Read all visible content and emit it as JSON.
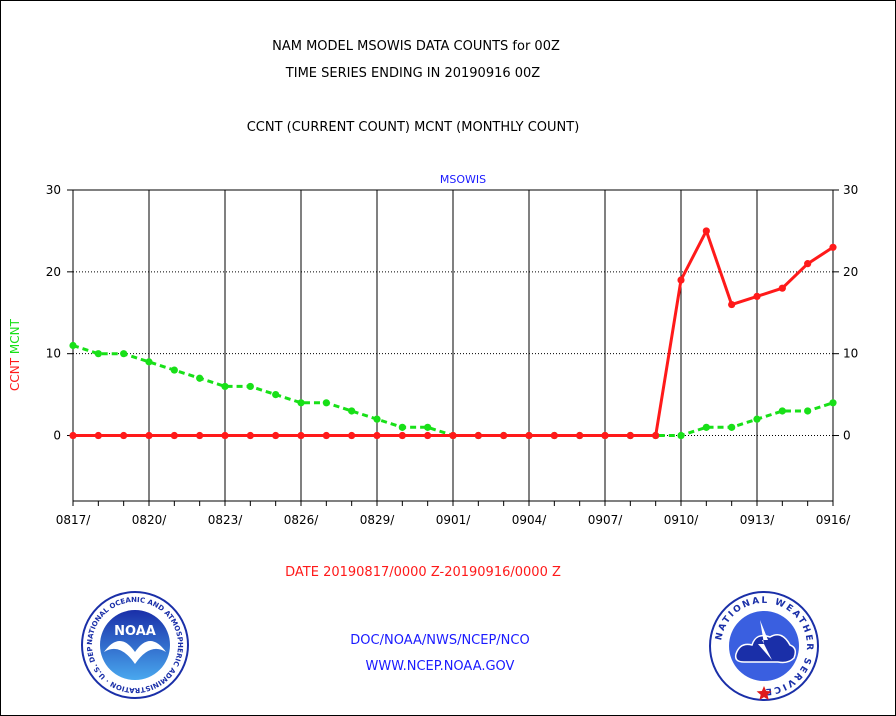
{
  "titles": {
    "line1": "NAM MODEL MSOWIS DATA COUNTS for 00Z",
    "line2": "TIME SERIES ENDING IN 20190916 00Z",
    "line3": "CCNT (CURRENT COUNT) MCNT (MONTHLY COUNT)"
  },
  "footer": {
    "date_range": "DATE 20190817/0000 Z-20190916/0000 Z",
    "org_path": "DOC/NOAA/NWS/NCEP/NCO",
    "website": "WWW.NCEP.NOAA.GOV"
  },
  "logos": {
    "noaa_text": "NOAA",
    "noaa_ring": "NATIONAL OCEANIC AND ATMOSPHERIC ADMINISTRATION · U.S. DEPARTMENT OF COMMERCE ·",
    "nws_ring": "NATIONAL WEATHER SERVICE"
  },
  "colors": {
    "ccnt": "#ff1a1a",
    "mcnt": "#18e018",
    "panel_title": "#1a1aff",
    "footer_red": "#ff1a1a",
    "footer_blue": "#1a1aff"
  },
  "chart_data": {
    "type": "line",
    "panel_title": "MSOWIS",
    "ylabel_left": [
      "CCNT",
      "MCNT"
    ],
    "ylim": [
      -8,
      30
    ],
    "yticks": [
      0,
      10,
      20,
      30
    ],
    "grid": true,
    "x": [
      "0817",
      "0818",
      "0819",
      "0820",
      "0821",
      "0822",
      "0823",
      "0824",
      "0825",
      "0826",
      "0827",
      "0828",
      "0829",
      "0830",
      "0831",
      "0901",
      "0902",
      "0903",
      "0904",
      "0905",
      "0906",
      "0907",
      "0908",
      "0909",
      "0910",
      "0911",
      "0912",
      "0913",
      "0914",
      "0915",
      "0916"
    ],
    "xtick_labels": [
      "0817/",
      "0820/",
      "0823/",
      "0826/",
      "0829/",
      "0901/",
      "0904/",
      "0907/",
      "0910/",
      "0913/",
      "0916/"
    ],
    "series": [
      {
        "name": "CCNT",
        "color": "#ff1a1a",
        "style": "solid",
        "values": [
          0,
          0,
          0,
          0,
          0,
          0,
          0,
          0,
          0,
          0,
          0,
          0,
          0,
          0,
          0,
          0,
          0,
          0,
          0,
          0,
          0,
          0,
          0,
          0,
          19,
          25,
          16,
          17,
          18,
          21,
          23
        ]
      },
      {
        "name": "MCNT",
        "color": "#18e018",
        "style": "dashed",
        "values": [
          11,
          10,
          10,
          9,
          8,
          7,
          6,
          6,
          5,
          4,
          4,
          3,
          2,
          1,
          1,
          0,
          0,
          0,
          0,
          0,
          0,
          0,
          0,
          0,
          0,
          1,
          1,
          2,
          3,
          3,
          4
        ]
      }
    ]
  }
}
